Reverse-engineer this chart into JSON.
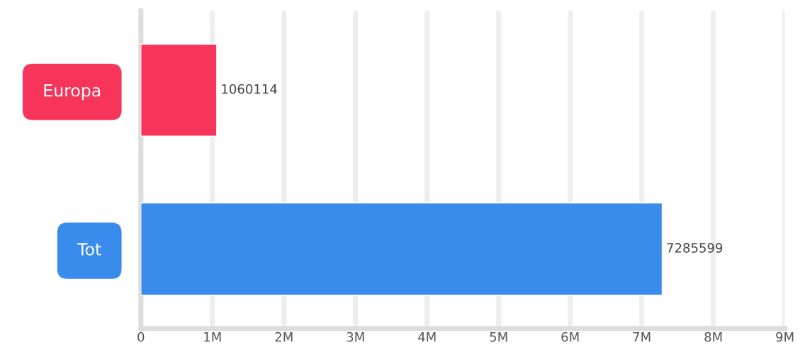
{
  "chart_data": {
    "type": "bar",
    "orientation": "horizontal",
    "categories": [
      "Europa",
      "Tot"
    ],
    "values": [
      1060114,
      7285599
    ],
    "colors": [
      "#f7345a",
      "#3a8cec"
    ],
    "xlim": [
      0,
      9000000
    ],
    "xticks": [
      {
        "value": 0,
        "label": "0"
      },
      {
        "value": 1000000,
        "label": "1M"
      },
      {
        "value": 2000000,
        "label": "2M"
      },
      {
        "value": 3000000,
        "label": "3M"
      },
      {
        "value": 4000000,
        "label": "4M"
      },
      {
        "value": 5000000,
        "label": "5M"
      },
      {
        "value": 6000000,
        "label": "6M"
      },
      {
        "value": 7000000,
        "label": "7M"
      },
      {
        "value": 8000000,
        "label": "8M"
      },
      {
        "value": 9000000,
        "label": "9M"
      }
    ],
    "grid": "x",
    "data_labels": true
  }
}
